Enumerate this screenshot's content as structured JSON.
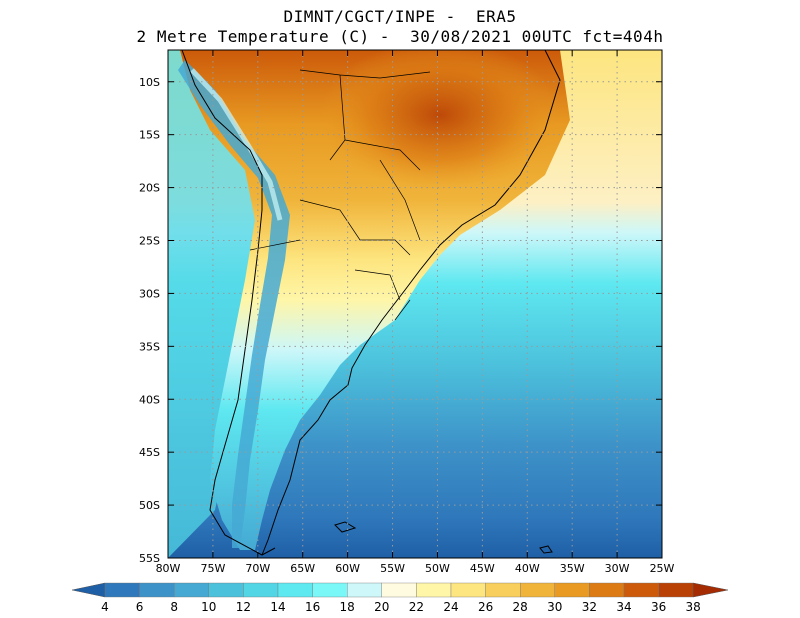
{
  "header": {
    "line1": "DIMNT/CGCT/INPE -  ERA5",
    "line2": "2 Metre Temperature (C) -  30/08/2021 00UTC fct=404h"
  },
  "map": {
    "region": "South America",
    "lon_range": [
      -80,
      -25
    ],
    "lat_range": [
      -55,
      -7
    ],
    "lat_labels": [
      "10S",
      "15S",
      "20S",
      "25S",
      "30S",
      "35S",
      "40S",
      "45S",
      "50S",
      "55S"
    ],
    "lon_labels": [
      "80W",
      "75W",
      "70W",
      "65W",
      "60W",
      "55W",
      "50W",
      "45W",
      "40W",
      "35W",
      "30W",
      "25W"
    ],
    "land_color": "#000000",
    "grid_color": "#9a9a9a"
  },
  "colorbar": {
    "levels": [
      "4",
      "6",
      "8",
      "10",
      "12",
      "14",
      "16",
      "18",
      "20",
      "22",
      "24",
      "26",
      "28",
      "30",
      "32",
      "34",
      "36",
      "38"
    ],
    "colors": [
      "#1f5fa6",
      "#2f78bb",
      "#3d92c8",
      "#45a9d3",
      "#4cc1dc",
      "#52d6e5",
      "#5ee8f0",
      "#7af7f7",
      "#cdf7f9",
      "#fffbe0",
      "#fff6a8",
      "#fde57f",
      "#f8cf5c",
      "#f0b43a",
      "#e89a22",
      "#dc7b14",
      "#cc5a0a",
      "#b94106",
      "#a52b02"
    ]
  }
}
